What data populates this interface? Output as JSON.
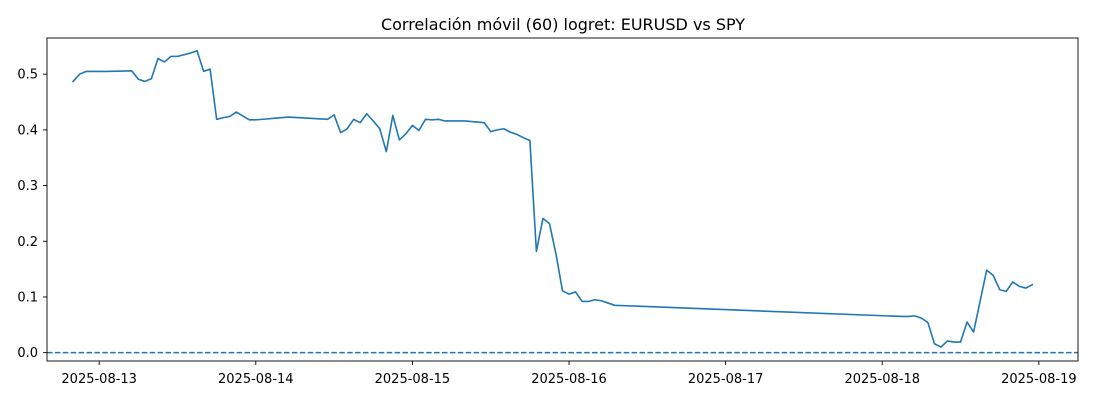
{
  "chart_data": {
    "type": "line",
    "title": "Correlación móvil (60) logret: EURUSD vs SPY",
    "xlabel": "",
    "ylabel": "",
    "x_axis": "date",
    "xlim": [
      "2025-08-12 16:00",
      "2025-08-19 06:00"
    ],
    "ylim": [
      -0.015,
      0.565
    ],
    "x_ticks": [
      "2025-08-13",
      "2025-08-14",
      "2025-08-15",
      "2025-08-16",
      "2025-08-17",
      "2025-08-18",
      "2025-08-19"
    ],
    "y_ticks": [
      "0.0",
      "0.1",
      "0.2",
      "0.3",
      "0.4",
      "0.5"
    ],
    "grid": false,
    "series": [
      {
        "color": "#1f77b4",
        "x": [
          "2025-08-12 20:00",
          "2025-08-12 21:00",
          "2025-08-12 22:00",
          "2025-08-13 01:00",
          "2025-08-13 05:00",
          "2025-08-13 06:00",
          "2025-08-13 07:00",
          "2025-08-13 08:00",
          "2025-08-13 09:00",
          "2025-08-13 10:00",
          "2025-08-13 11:00",
          "2025-08-13 12:00",
          "2025-08-13 14:00",
          "2025-08-13 15:00",
          "2025-08-13 16:00",
          "2025-08-13 17:00",
          "2025-08-13 18:00",
          "2025-08-13 19:00",
          "2025-08-13 20:00",
          "2025-08-13 21:00",
          "2025-08-13 23:00",
          "2025-08-14 00:00",
          "2025-08-14 02:00",
          "2025-08-14 03:00",
          "2025-08-14 05:00",
          "2025-08-14 11:00",
          "2025-08-14 12:00",
          "2025-08-14 13:00",
          "2025-08-14 14:00",
          "2025-08-14 15:00",
          "2025-08-14 16:00",
          "2025-08-14 17:00",
          "2025-08-14 18:00",
          "2025-08-14 19:00",
          "2025-08-14 20:00",
          "2025-08-14 21:00",
          "2025-08-14 22:00",
          "2025-08-14 23:00",
          "2025-08-15 00:00",
          "2025-08-15 01:00",
          "2025-08-15 02:00",
          "2025-08-15 03:00",
          "2025-08-15 04:00",
          "2025-08-15 05:00",
          "2025-08-15 08:00",
          "2025-08-15 11:00",
          "2025-08-15 12:00",
          "2025-08-15 13:00",
          "2025-08-15 14:00",
          "2025-08-15 15:00",
          "2025-08-15 16:00",
          "2025-08-15 17:00",
          "2025-08-15 18:00",
          "2025-08-15 19:00",
          "2025-08-15 20:00",
          "2025-08-15 21:00",
          "2025-08-15 22:00",
          "2025-08-15 23:00",
          "2025-08-16 00:00",
          "2025-08-16 01:00",
          "2025-08-16 02:00",
          "2025-08-16 03:00",
          "2025-08-16 04:00",
          "2025-08-16 05:00",
          "2025-08-16 07:00",
          "2025-08-18 03:00",
          "2025-08-18 04:00",
          "2025-08-18 05:00",
          "2025-08-18 06:00",
          "2025-08-18 07:00",
          "2025-08-18 08:00",
          "2025-08-18 09:00",
          "2025-08-18 10:00",
          "2025-08-18 11:00",
          "2025-08-18 12:00",
          "2025-08-18 13:00",
          "2025-08-18 14:00",
          "2025-08-18 16:00",
          "2025-08-18 17:00",
          "2025-08-18 18:00",
          "2025-08-18 19:00",
          "2025-08-18 20:00",
          "2025-08-18 21:00",
          "2025-08-18 22:00",
          "2025-08-18 23:00"
        ],
        "y": [
          0.487,
          0.5,
          0.505,
          0.505,
          0.506,
          0.491,
          0.487,
          0.492,
          0.528,
          0.522,
          0.532,
          0.532,
          0.538,
          0.542,
          0.505,
          0.509,
          0.419,
          0.422,
          0.424,
          0.432,
          0.418,
          0.418,
          0.42,
          0.421,
          0.423,
          0.419,
          0.427,
          0.395,
          0.402,
          0.419,
          0.413,
          0.429,
          0.416,
          0.402,
          0.361,
          0.426,
          0.382,
          0.393,
          0.408,
          0.399,
          0.419,
          0.418,
          0.419,
          0.416,
          0.416,
          0.413,
          0.397,
          0.4,
          0.402,
          0.396,
          0.392,
          0.386,
          0.381,
          0.182,
          0.241,
          0.232,
          0.177,
          0.111,
          0.105,
          0.109,
          0.092,
          0.092,
          0.095,
          0.093,
          0.085,
          0.065,
          0.065,
          0.066,
          0.062,
          0.054,
          0.016,
          0.01,
          0.021,
          0.019,
          0.019,
          0.055,
          0.037,
          0.148,
          0.139,
          0.113,
          0.11,
          0.127,
          0.119,
          0.116,
          0.122
        ]
      }
    ],
    "reference_line": {
      "y": 0.0,
      "style": "dashed",
      "color": "#1f77b4"
    }
  }
}
